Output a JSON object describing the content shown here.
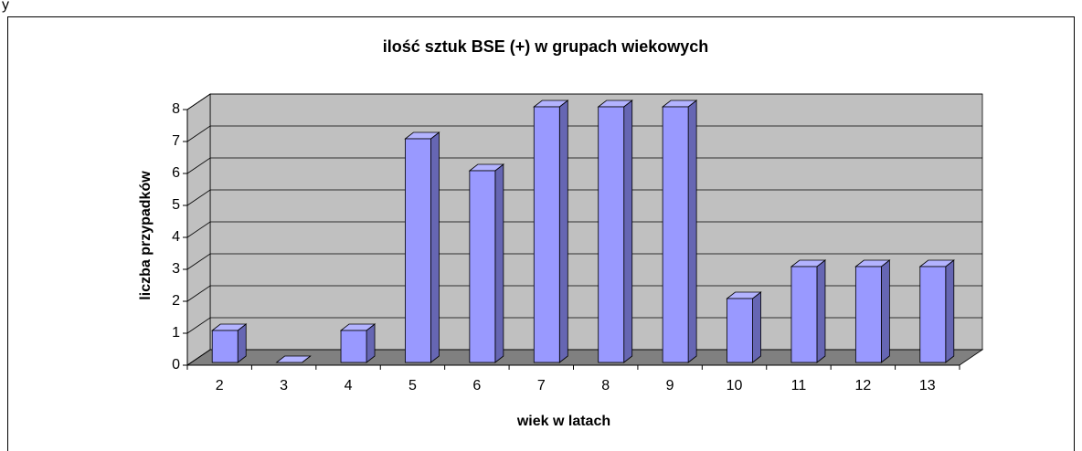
{
  "page_text": "y",
  "chart_data": {
    "type": "bar3d",
    "title": "ilość sztuk BSE (+) w grupach wiekowych",
    "x_label": "wiek w latach",
    "y_label": "liczba przypadków",
    "categories": [
      "2",
      "3",
      "4",
      "5",
      "6",
      "7",
      "8",
      "9",
      "10",
      "11",
      "12",
      "13"
    ],
    "values": [
      1,
      0,
      1,
      7,
      6,
      8,
      8,
      8,
      2,
      3,
      3,
      3
    ],
    "color": "#9999ff",
    "ylim": [
      0,
      8
    ],
    "yticks": [
      0,
      1,
      2,
      3,
      4,
      5,
      6,
      7,
      8
    ],
    "grid": true
  }
}
